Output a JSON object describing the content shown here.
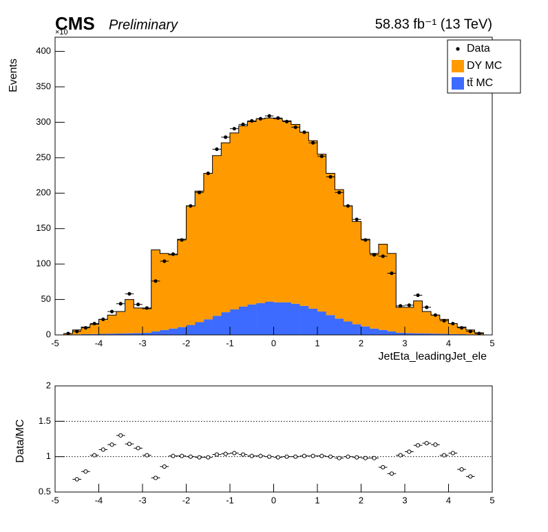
{
  "chart_data": [
    {
      "type": "stacked_histogram",
      "title": "CMS",
      "subtitle": "Preliminary",
      "lumi": "58.83 fb⁻¹ (13 TeV)",
      "y_multiplier": "×10",
      "x_label": "JetEta_leadingJet_ele",
      "y_label": "Events",
      "bins": [
        -4.8,
        -4.6,
        -4.4,
        -4.2,
        -4.0,
        -3.8,
        -3.6,
        -3.4,
        -3.2,
        -3.0,
        -2.8,
        -2.6,
        -2.4,
        -2.2,
        -2.0,
        -1.8,
        -1.6,
        -1.4,
        -1.2,
        -1.0,
        -0.8,
        -0.6,
        -0.4,
        -0.2,
        0,
        0.2,
        0.4,
        0.6,
        0.8,
        1.0,
        1.2,
        1.4,
        1.6,
        1.8,
        2.0,
        2.2,
        2.4,
        2.6,
        2.8,
        3.0,
        3.2,
        3.4,
        3.6,
        3.8,
        4.0,
        4.2,
        4.4,
        4.6,
        4.8
      ],
      "series": [
        {
          "name": "tt̄ MC",
          "color": "#3d6bff",
          "stack": true,
          "values": [
            0.5,
            0.7,
            1,
            1.2,
            1.5,
            1.8,
            2,
            2.3,
            2.5,
            3,
            5,
            7,
            9,
            11,
            14,
            18,
            22,
            27,
            32,
            36,
            40,
            43,
            45,
            47,
            46,
            46,
            44,
            41,
            37,
            33,
            28,
            23,
            19,
            15,
            12,
            9,
            7,
            5,
            3,
            2.5,
            2.3,
            2,
            1.8,
            1.5,
            1.2,
            1,
            0.7,
            0.5
          ]
        },
        {
          "name": "DY MC",
          "color": "#ff9a00",
          "stack": true,
          "values": [
            1.5,
            6.3,
            10,
            13.8,
            20.5,
            26.2,
            31,
            47.7,
            35.5,
            34,
            115,
            108,
            104,
            124,
            168,
            185,
            206,
            226,
            239,
            249,
            255,
            258,
            260,
            259,
            259,
            256,
            253,
            245,
            237,
            222,
            200,
            182,
            163,
            145,
            123,
            106,
            121,
            110,
            36,
            36.5,
            45.7,
            31,
            26.2,
            20.5,
            14.8,
            10,
            6.3,
            2.5
          ]
        },
        {
          "name": "Data",
          "color": "#000000",
          "stack": false,
          "values": [
            2,
            5,
            10,
            16,
            22,
            33,
            44,
            58,
            43,
            38,
            76,
            104,
            114,
            134,
            182,
            201,
            228,
            262,
            279,
            291,
            297,
            302,
            305,
            309,
            306,
            301,
            293,
            286,
            271,
            252,
            223,
            201,
            182,
            163,
            134,
            113,
            111,
            87,
            41,
            42,
            56,
            39,
            28,
            20,
            16,
            10,
            5,
            2
          ]
        }
      ],
      "xlim": [
        -5,
        5
      ],
      "xticks": [
        -5,
        -4,
        -3,
        -2,
        -1,
        0,
        1,
        2,
        3,
        4,
        5
      ],
      "ylim": [
        0,
        420
      ],
      "yticks": [
        0,
        50,
        100,
        150,
        200,
        250,
        300,
        350,
        400
      ],
      "legend": "top-right"
    },
    {
      "type": "ratio",
      "x_label": null,
      "y_label": "Data/MC",
      "x": [
        -4.5,
        -4.3,
        -4.1,
        -3.9,
        -3.7,
        -3.5,
        -3.3,
        -3.1,
        -2.9,
        -2.7,
        -2.5,
        -2.3,
        -2.1,
        -1.9,
        -1.7,
        -1.5,
        -1.3,
        -1.1,
        -0.9,
        -0.7,
        -0.5,
        -0.3,
        -0.1,
        0.1,
        0.3,
        0.5,
        0.7,
        0.9,
        1.1,
        1.3,
        1.5,
        1.7,
        1.9,
        2.1,
        2.3,
        2.5,
        2.7,
        2.9,
        3.1,
        3.3,
        3.5,
        3.7,
        3.9,
        4.1,
        4.3,
        4.5
      ],
      "values": [
        0.68,
        0.79,
        1.02,
        1.1,
        1.17,
        1.3,
        1.18,
        1.12,
        1.02,
        0.7,
        0.86,
        1.01,
        1.01,
        1.0,
        0.99,
        0.99,
        1.03,
        1.04,
        1.05,
        1.03,
        1.01,
        1.01,
        1.0,
        0.99,
        1.0,
        1.0,
        1.01,
        1.01,
        1.01,
        1.0,
        0.98,
        1.0,
        0.99,
        0.98,
        0.98,
        0.85,
        0.76,
        1.02,
        1.07,
        1.16,
        1.19,
        1.17,
        1.02,
        1.05,
        0.82,
        0.72
      ],
      "xlim": [
        -5,
        5
      ],
      "xticks": [
        -5,
        -4,
        -3,
        -2,
        -1,
        0,
        1,
        2,
        3,
        4,
        5
      ],
      "ylim": [
        0.5,
        2
      ],
      "yticks": [
        0.5,
        1,
        1.5,
        2
      ],
      "ref_lines": [
        1,
        1.5
      ]
    }
  ]
}
